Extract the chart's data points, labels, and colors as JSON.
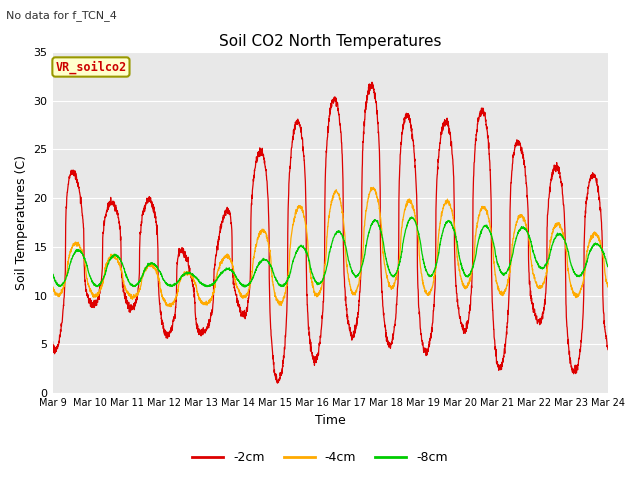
{
  "title": "Soil CO2 North Temperatures",
  "subtitle": "No data for f_TCN_4",
  "xlabel": "Time",
  "ylabel": "Soil Temperatures (C)",
  "ylim": [
    0,
    35
  ],
  "xlim": [
    0,
    15
  ],
  "x_tick_labels": [
    "Mar 9",
    "Mar 10",
    "Mar 11",
    "Mar 12",
    "Mar 13",
    "Mar 14",
    "Mar 15",
    "Mar 16",
    "Mar 17",
    "Mar 18",
    "Mar 19",
    "Mar 20",
    "Mar 21",
    "Mar 22",
    "Mar 23",
    "Mar 24"
  ],
  "series_labels": [
    "-2cm",
    "-4cm",
    "-8cm"
  ],
  "series_colors": [
    "#dd0000",
    "#ffaa00",
    "#00cc00"
  ],
  "legend_label": "VR_soilco2",
  "legend_box_color": "#ffffcc",
  "legend_box_border": "#999900",
  "background_color": "#e8e8e8",
  "yticks": [
    0,
    5,
    10,
    15,
    20,
    25,
    30,
    35
  ],
  "figsize": [
    6.4,
    4.8
  ],
  "dpi": 100
}
